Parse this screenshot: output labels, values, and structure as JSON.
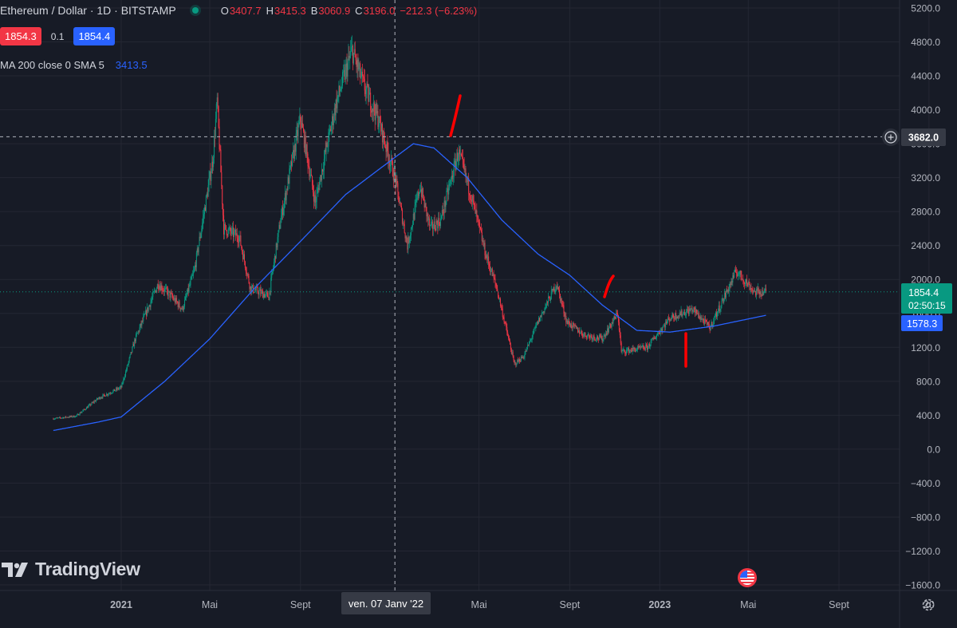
{
  "header": {
    "symbol_title": "Ethereum / Dollar · 1D · BITSTAMP",
    "ohlc": {
      "o_label": "O",
      "o": "3407.7",
      "h_label": "H",
      "h": "3415.3",
      "b_label": "B",
      "b": "3060.9",
      "c_label": "C",
      "c": "3196.0",
      "change": "−212.3 (−6.23%)"
    },
    "sell_price": "1854.3",
    "spread": "0.1",
    "buy_price": "1854.4",
    "indicator_label": "MA 200 close 0 SMA 5",
    "indicator_value": "3413.5"
  },
  "price_axis": {
    "ticks": [
      "5200.0",
      "4800.0",
      "4400.0",
      "4000.0",
      "3600.0",
      "3200.0",
      "2800.0",
      "2400.0",
      "2000.0",
      "1600.0",
      "1200.0",
      "800.0",
      "400.0",
      "0.0",
      "−400.0",
      "−800.0",
      "−1200.0",
      "−1600.0"
    ],
    "crosshair_label": "3682.0",
    "last_price_label": "1854.4",
    "countdown_label": "02:50:15",
    "ma_label": "1578.3"
  },
  "time_axis": {
    "ticks": [
      "2021",
      "Mai",
      "Sept",
      "Mai",
      "Sept",
      "2023",
      "Mai",
      "Sept",
      "20"
    ],
    "crosshair_label": "ven. 07 Janv '22"
  },
  "branding": {
    "name": "TradingView"
  },
  "colors": {
    "up": "#089981",
    "down": "#f23645",
    "ma": "#2962ff",
    "annotation": "#ff0000"
  },
  "chart_data": {
    "type": "candlestick",
    "y_range": [
      -1600,
      5200
    ],
    "last_price": 1854.4,
    "crosshair_price": 3682.0,
    "ma_period": 200,
    "ma_last": 1578.3,
    "close_path": [
      [
        "2020-10-01",
        360
      ],
      [
        "2020-11-01",
        390
      ],
      [
        "2020-12-01",
        600
      ],
      [
        "2021-01-01",
        730
      ],
      [
        "2021-01-20",
        1300
      ],
      [
        "2021-02-20",
        1950
      ],
      [
        "2021-03-10",
        1800
      ],
      [
        "2021-03-25",
        1650
      ],
      [
        "2021-04-10",
        2100
      ],
      [
        "2021-05-05",
        3400
      ],
      [
        "2021-05-11",
        4100
      ],
      [
        "2021-05-20",
        2600
      ],
      [
        "2021-06-10",
        2500
      ],
      [
        "2021-06-25",
        1900
      ],
      [
        "2021-07-20",
        1800
      ],
      [
        "2021-08-05",
        2700
      ],
      [
        "2021-09-01",
        3900
      ],
      [
        "2021-09-21",
        2900
      ],
      [
        "2021-10-05",
        3500
      ],
      [
        "2021-10-20",
        4100
      ],
      [
        "2021-11-10",
        4700
      ],
      [
        "2021-11-25",
        4300
      ],
      [
        "2021-12-05",
        4100
      ],
      [
        "2021-12-15",
        3900
      ],
      [
        "2022-01-07",
        3196
      ],
      [
        "2022-01-24",
        2400
      ],
      [
        "2022-02-10",
        3100
      ],
      [
        "2022-02-24",
        2600
      ],
      [
        "2022-03-10",
        2700
      ],
      [
        "2022-04-03",
        3500
      ],
      [
        "2022-04-20",
        3000
      ],
      [
        "2022-05-10",
        2300
      ],
      [
        "2022-05-25",
        1900
      ],
      [
        "2022-06-18",
        1000
      ],
      [
        "2022-07-01",
        1100
      ],
      [
        "2022-07-20",
        1500
      ],
      [
        "2022-08-14",
        1950
      ],
      [
        "2022-08-28",
        1500
      ],
      [
        "2022-09-20",
        1350
      ],
      [
        "2022-10-15",
        1300
      ],
      [
        "2022-11-05",
        1600
      ],
      [
        "2022-11-10",
        1150
      ],
      [
        "2022-12-15",
        1200
      ],
      [
        "2023-01-15",
        1550
      ],
      [
        "2023-02-15",
        1650
      ],
      [
        "2023-03-10",
        1430
      ],
      [
        "2023-04-15",
        2100
      ],
      [
        "2023-05-10",
        1850
      ],
      [
        "2023-05-25",
        1854
      ]
    ],
    "ma_path": [
      [
        "2020-10-01",
        220
      ],
      [
        "2020-12-01",
        320
      ],
      [
        "2021-01-01",
        380
      ],
      [
        "2021-03-01",
        800
      ],
      [
        "2021-05-01",
        1300
      ],
      [
        "2021-07-01",
        1900
      ],
      [
        "2021-09-01",
        2450
      ],
      [
        "2021-11-01",
        3000
      ],
      [
        "2022-01-01",
        3400
      ],
      [
        "2022-02-01",
        3600
      ],
      [
        "2022-03-01",
        3550
      ],
      [
        "2022-04-15",
        3200
      ],
      [
        "2022-06-01",
        2700
      ],
      [
        "2022-07-20",
        2300
      ],
      [
        "2022-09-01",
        2050
      ],
      [
        "2022-10-15",
        1700
      ],
      [
        "2022-12-01",
        1400
      ],
      [
        "2023-01-15",
        1380
      ],
      [
        "2023-03-15",
        1450
      ],
      [
        "2023-05-25",
        1578
      ]
    ]
  }
}
